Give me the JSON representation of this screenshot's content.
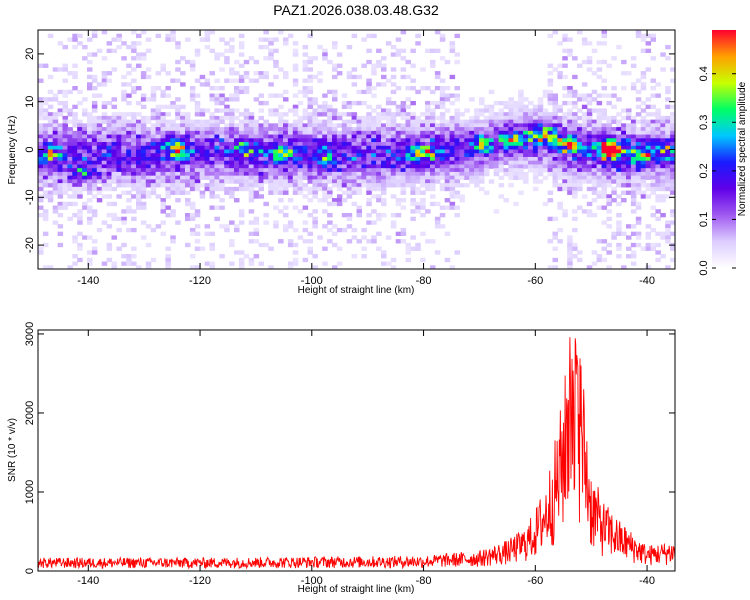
{
  "figure": {
    "title": "PAZ1.2026.038.03.48.G32"
  },
  "colors": {
    "snr_line": "#ff0000",
    "axes": "#000000",
    "colormap": [
      "#ffffff",
      "#dccdff",
      "#a05af0",
      "#6000e8",
      "#1a1aff",
      "#00c8ff",
      "#00ff64",
      "#c8ff00",
      "#ffa000",
      "#ff0030"
    ]
  },
  "chart_data": [
    {
      "type": "heatmap",
      "title": "",
      "xlabel": "Height of straight line (km)",
      "ylabel": "Frequency (Hz)",
      "xlim": [
        -149,
        -35
      ],
      "ylim": [
        -25,
        25
      ],
      "x_ticks": [
        -140,
        -120,
        -100,
        -80,
        -60,
        -40
      ],
      "y_ticks": [
        -20,
        -10,
        0,
        10,
        20
      ],
      "colorbar": {
        "label": "Normalized spectral amplitude",
        "range": [
          0,
          0.49
        ],
        "ticks": [
          0.0,
          0.1,
          0.2,
          0.3,
          0.4
        ]
      },
      "band": {
        "center_hz": [
          {
            "x": -149,
            "y": -1
          },
          {
            "x": -130,
            "y": -1
          },
          {
            "x": -115,
            "y": -0.5
          },
          {
            "x": -100,
            "y": -1
          },
          {
            "x": -85,
            "y": -1
          },
          {
            "x": -72,
            "y": 0
          },
          {
            "x": -65,
            "y": 2
          },
          {
            "x": -58,
            "y": 2
          },
          {
            "x": -52,
            "y": 0
          },
          {
            "x": -45,
            "y": -1
          },
          {
            "x": -35,
            "y": -1
          }
        ],
        "peaks": [
          {
            "x": -147,
            "y": -1,
            "amp": 0.18
          },
          {
            "x": -141,
            "y": -5,
            "amp": 0.16
          },
          {
            "x": -124,
            "y": 0,
            "amp": 0.24
          },
          {
            "x": -112,
            "y": 0,
            "amp": 0.18
          },
          {
            "x": -105,
            "y": -1,
            "amp": 0.17
          },
          {
            "x": -98,
            "y": -2,
            "amp": 0.15
          },
          {
            "x": -80,
            "y": -1,
            "amp": 0.26
          },
          {
            "x": -70,
            "y": 1,
            "amp": 0.2
          },
          {
            "x": -64,
            "y": 2,
            "amp": 0.2
          },
          {
            "x": -59,
            "y": 3,
            "amp": 0.32
          },
          {
            "x": -54,
            "y": 1,
            "amp": 0.24
          },
          {
            "x": -47,
            "y": 0,
            "amp": 0.47
          },
          {
            "x": -41,
            "y": -1,
            "amp": 0.24
          },
          {
            "x": -37,
            "y": 0,
            "amp": 0.16
          }
        ]
      }
    },
    {
      "type": "line",
      "title": "",
      "xlabel": "Height of straight line (km)",
      "ylabel": "SNR (10 * v/v)",
      "xlim": [
        -149,
        -35
      ],
      "ylim": [
        0,
        3050
      ],
      "x_ticks": [
        -140,
        -120,
        -100,
        -80,
        -60,
        -40
      ],
      "y_ticks": [
        0,
        1000,
        2000,
        3000
      ],
      "series": [
        {
          "profile": [
            {
              "x": -149,
              "y": 130
            },
            {
              "x": -120,
              "y": 130
            },
            {
              "x": -100,
              "y": 140
            },
            {
              "x": -80,
              "y": 150
            },
            {
              "x": -70,
              "y": 200
            },
            {
              "x": -65,
              "y": 300
            },
            {
              "x": -62,
              "y": 420
            },
            {
              "x": -60,
              "y": 600
            },
            {
              "x": -58,
              "y": 900
            },
            {
              "x": -56,
              "y": 1400
            },
            {
              "x": -54,
              "y": 2200
            },
            {
              "x": -53,
              "y": 3050
            },
            {
              "x": -52,
              "y": 2300
            },
            {
              "x": -50,
              "y": 1000
            },
            {
              "x": -48,
              "y": 700
            },
            {
              "x": -45,
              "y": 500
            },
            {
              "x": -42,
              "y": 350
            },
            {
              "x": -40,
              "y": 250
            },
            {
              "x": -35,
              "y": 300
            }
          ]
        }
      ]
    }
  ]
}
